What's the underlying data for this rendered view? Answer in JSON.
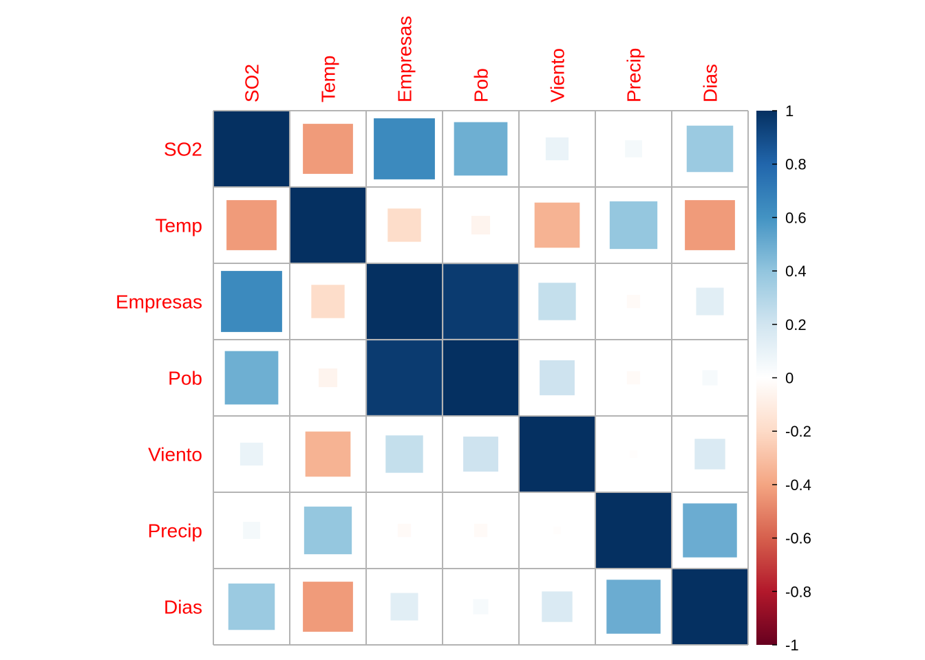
{
  "chart_data": {
    "type": "heatmap",
    "method": "square",
    "variables": [
      "SO2",
      "Temp",
      "Empresas",
      "Pob",
      "Viento",
      "Precip",
      "Dias"
    ],
    "matrix": [
      [
        1.0,
        -0.43,
        0.64,
        0.49,
        0.09,
        0.05,
        0.37
      ],
      [
        -0.43,
        1.0,
        -0.19,
        -0.06,
        -0.35,
        0.39,
        -0.43
      ],
      [
        0.64,
        -0.19,
        1.0,
        0.96,
        0.24,
        -0.03,
        0.13
      ],
      [
        0.49,
        -0.06,
        0.96,
        1.0,
        0.21,
        -0.03,
        0.04
      ],
      [
        0.09,
        -0.35,
        0.24,
        0.21,
        1.0,
        -0.01,
        0.16
      ],
      [
        0.05,
        0.39,
        -0.03,
        -0.03,
        -0.01,
        1.0,
        0.5
      ],
      [
        0.37,
        -0.43,
        0.13,
        0.04,
        0.16,
        0.5,
        1.0
      ]
    ],
    "colorbar": {
      "min": -1,
      "max": 1,
      "ticks": [
        "1",
        "0.8",
        "0.6",
        "0.4",
        "0.2",
        "0",
        "-0.2",
        "-0.4",
        "-0.6",
        "-0.8",
        "-1"
      ],
      "palette": [
        "#67001F",
        "#B2182B",
        "#D6604D",
        "#F4A582",
        "#FDDBC7",
        "#FFFFFF",
        "#D1E5F0",
        "#92C5DE",
        "#4393C3",
        "#2166AC",
        "#053061"
      ]
    },
    "label_color": "#ff0000",
    "grid_color": "#b3b3b3"
  }
}
